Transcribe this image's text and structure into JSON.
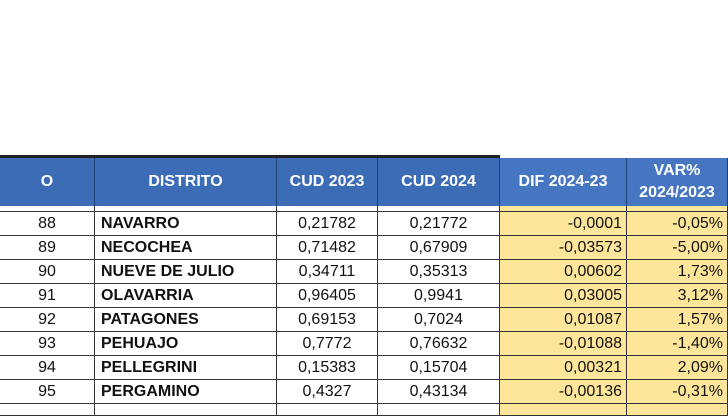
{
  "table": {
    "header": [
      "O",
      "DISTRITO",
      "CUD 2023",
      "CUD 2024",
      "DIF 2024-23",
      "VAR% 2024/2023"
    ],
    "rows": [
      [
        "88",
        "NAVARRO",
        "0,21782",
        "0,21772",
        "-0,0001",
        "-0,05%"
      ],
      [
        "89",
        "NECOCHEA",
        "0,71482",
        "0,67909",
        "-0,03573",
        "-5,00%"
      ],
      [
        "90",
        "NUEVE DE JULIO",
        "0,34711",
        "0,35313",
        "0,00602",
        "1,73%"
      ],
      [
        "91",
        "OLAVARRIA",
        "0,96405",
        "0,9941",
        "0,03005",
        "3,12%"
      ],
      [
        "92",
        "PATAGONES",
        "0,69153",
        "0,7024",
        "0,01087",
        "1,57%"
      ],
      [
        "93",
        "PEHUAJO",
        "0,7772",
        "0,76632",
        "-0,01088",
        "-1,40%"
      ],
      [
        "94",
        "PELLEGRINI",
        "0,15383",
        "0,15704",
        "0,00321",
        "2,09%"
      ],
      [
        "95",
        "PERGAMINO",
        "0,4327",
        "0,43134",
        "-0,00136",
        "-0,31%"
      ]
    ]
  }
}
